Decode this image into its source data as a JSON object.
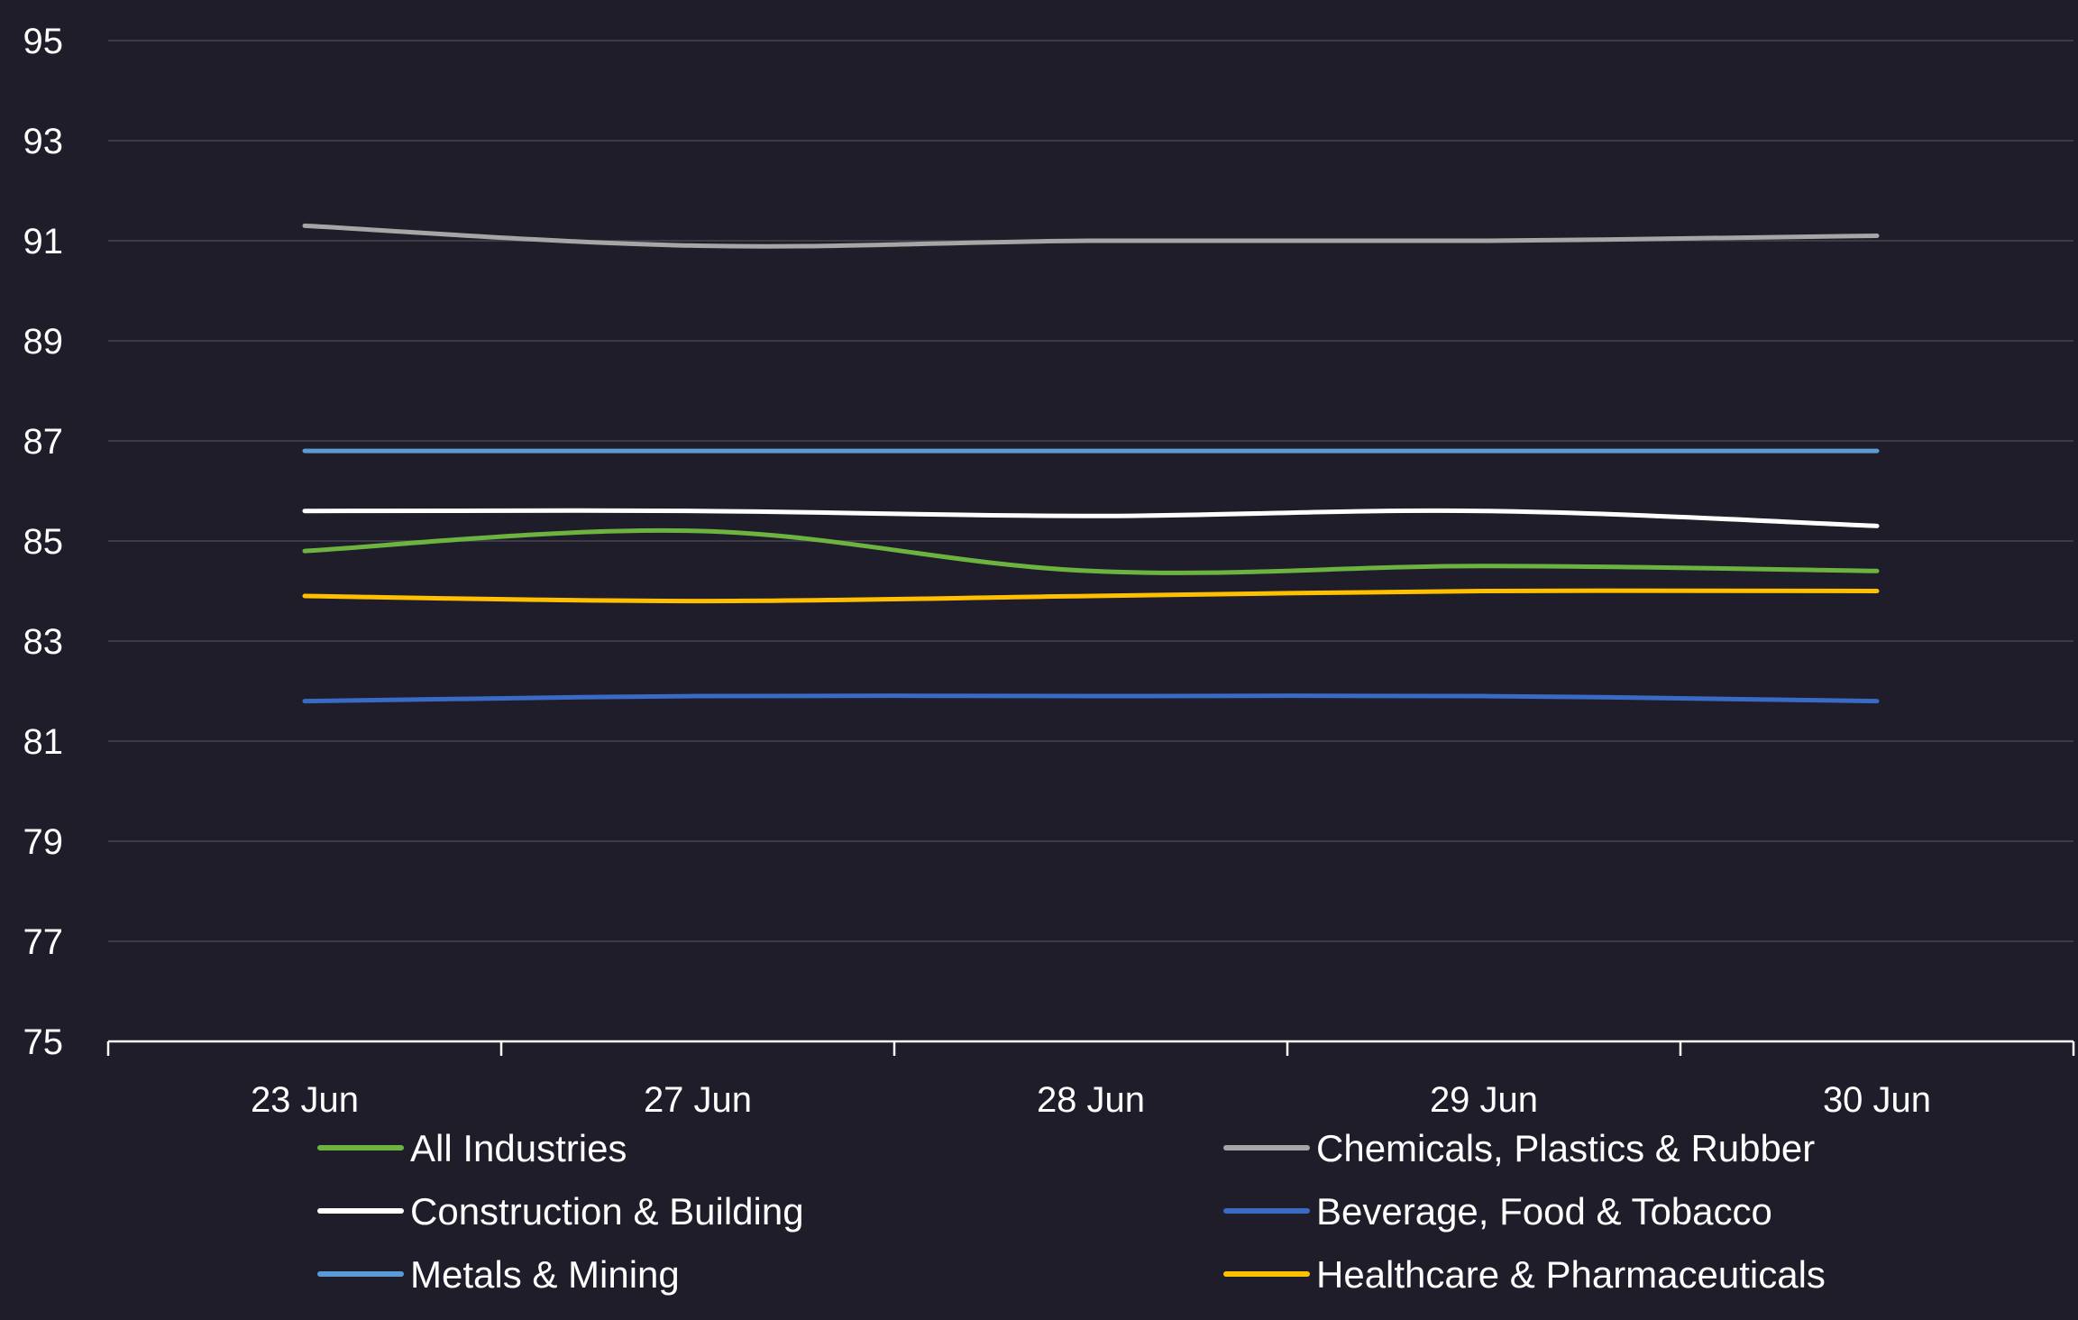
{
  "chart_data": {
    "type": "line",
    "title": "",
    "xlabel": "",
    "ylabel": "",
    "ylim": [
      75,
      95
    ],
    "ytick_step": 2,
    "categories": [
      "23 Jun",
      "27 Jun",
      "28 Jun",
      "29 Jun",
      "30 Jun"
    ],
    "grid": true,
    "legend_position": "bottom",
    "series": [
      {
        "name": "All Industries",
        "color": "#6db33f",
        "values": [
          84.8,
          85.2,
          84.4,
          84.5,
          84.4
        ]
      },
      {
        "name": "Chemicals, Plastics & Rubber",
        "color": "#a6a6a6",
        "values": [
          91.3,
          90.9,
          91.0,
          91.0,
          91.1
        ]
      },
      {
        "name": "Construction & Building",
        "color": "#ffffff",
        "values": [
          85.6,
          85.6,
          85.5,
          85.6,
          85.3
        ]
      },
      {
        "name": "Beverage, Food & Tobacco",
        "color": "#3a6bc4",
        "values": [
          81.8,
          81.9,
          81.9,
          81.9,
          81.8
        ]
      },
      {
        "name": "Metals & Mining",
        "color": "#5b9bd5",
        "values": [
          86.8,
          86.8,
          86.8,
          86.8,
          86.8
        ]
      },
      {
        "name": "Healthcare & Pharmaceuticals",
        "color": "#ffc000",
        "values": [
          83.9,
          83.8,
          83.9,
          84.0,
          84.0
        ]
      }
    ],
    "colors": {
      "background": "#1e1d29",
      "grid": "#3c3b46",
      "axis": "#ffffff",
      "text": "#ffffff"
    }
  }
}
